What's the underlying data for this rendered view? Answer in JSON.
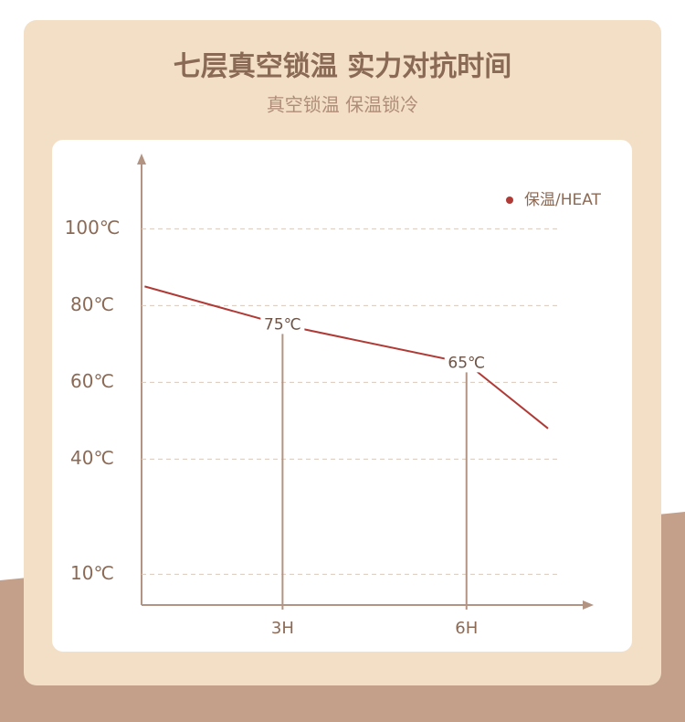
{
  "chart_data": {
    "type": "line",
    "title": "七层真空锁温 实力对抗时间",
    "subtitle": "真空锁温 保温锁冷",
    "x": [
      0.75,
      3,
      6,
      7.33
    ],
    "series": [
      {
        "name": "保温/HEAT",
        "color": "#b03a35",
        "values": [
          85,
          75,
          65,
          48
        ],
        "value_labels": [
          null,
          "75℃",
          "65℃",
          null
        ]
      }
    ],
    "xlim": [
      0.7,
      8
    ],
    "xticks": [
      {
        "value": 3,
        "label": "3H"
      },
      {
        "value": 6,
        "label": "6H"
      }
    ],
    "ylim": [
      2,
      118
    ],
    "yticks": [
      {
        "value": 100,
        "label": "100℃"
      },
      {
        "value": 80,
        "label": "80℃"
      },
      {
        "value": 60,
        "label": "60℃"
      },
      {
        "value": 40,
        "label": "40℃"
      },
      {
        "value": 10,
        "label": "10℃"
      }
    ],
    "grid": true,
    "legend": "top-right"
  }
}
